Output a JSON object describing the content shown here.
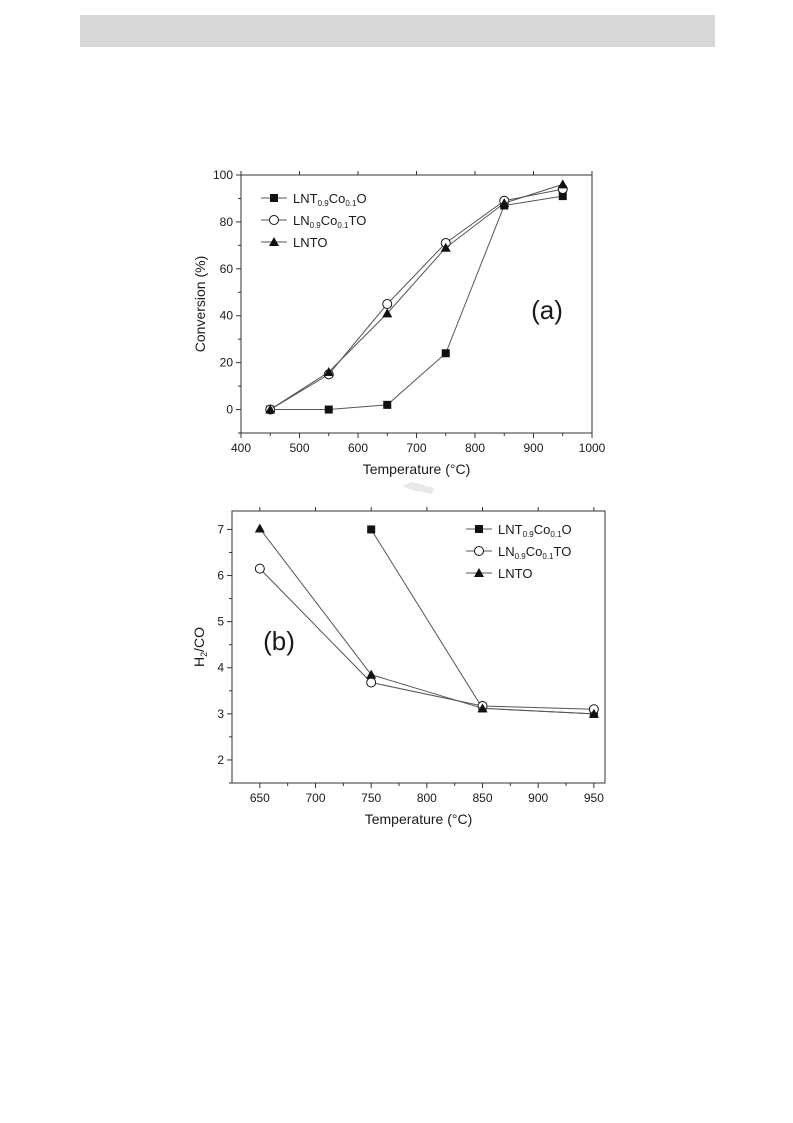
{
  "page": {
    "header_bar_color": "#d7d7d7"
  },
  "chart_data": [
    {
      "type": "line",
      "panel_label": "(a)",
      "xlabel": "Temperature (°C)",
      "ylabel": "Conversion (%)",
      "xlim": [
        400,
        1000
      ],
      "ylim": [
        -10,
        100
      ],
      "xticks": [
        400,
        500,
        600,
        700,
        800,
        900,
        1000
      ],
      "yticks": [
        0,
        20,
        40,
        60,
        80,
        100
      ],
      "grid": false,
      "legend_position": "top-left",
      "series": [
        {
          "name": "LNT0.9Co0.1O",
          "legend": {
            "base": "LNT",
            "sub1": "0.9",
            "mid": "Co",
            "sub2": "0.1",
            "tail": "O"
          },
          "marker": "square",
          "x": [
            450,
            550,
            650,
            750,
            850,
            950
          ],
          "y": [
            0,
            0,
            2,
            24,
            87,
            91
          ]
        },
        {
          "name": "LN0.9Co0.1TO",
          "legend": {
            "base": "LN",
            "sub1": "0.9",
            "mid": "Co",
            "sub2": "0.1",
            "tail": "TO"
          },
          "marker": "circle-open",
          "x": [
            450,
            550,
            650,
            750,
            850,
            950
          ],
          "y": [
            0,
            15,
            45,
            71,
            89,
            94
          ]
        },
        {
          "name": "LNTO",
          "legend": {
            "base": "LNTO",
            "sub1": "",
            "mid": "",
            "sub2": "",
            "tail": ""
          },
          "marker": "triangle",
          "x": [
            450,
            550,
            650,
            750,
            850,
            950
          ],
          "y": [
            0,
            16,
            41,
            69,
            88,
            96
          ]
        }
      ]
    },
    {
      "type": "line",
      "panel_label": "(b)",
      "xlabel": "Temperature (°C)",
      "ylabel": "H2/CO",
      "xlim": [
        625,
        960
      ],
      "ylim": [
        1.5,
        7.4
      ],
      "xticks": [
        650,
        700,
        750,
        800,
        850,
        900,
        950
      ],
      "yticks": [
        2,
        3,
        4,
        5,
        6,
        7
      ],
      "grid": false,
      "legend_position": "top-right",
      "series": [
        {
          "name": "LNT0.9Co0.1O",
          "legend": {
            "base": "LNT",
            "sub1": "0.9",
            "mid": "Co",
            "sub2": "0.1",
            "tail": "O"
          },
          "marker": "square",
          "x": [
            750,
            850,
            950
          ],
          "y": [
            7.0,
            3.12,
            3.0
          ]
        },
        {
          "name": "LN0.9Co0.1TO",
          "legend": {
            "base": "LN",
            "sub1": "0.9",
            "mid": "Co",
            "sub2": "0.1",
            "tail": "TO"
          },
          "marker": "circle-open",
          "x": [
            650,
            750,
            850,
            950
          ],
          "y": [
            6.15,
            3.68,
            3.17,
            3.1
          ]
        },
        {
          "name": "LNTO",
          "legend": {
            "base": "LNTO",
            "sub1": "",
            "mid": "",
            "sub2": "",
            "tail": ""
          },
          "marker": "triangle",
          "x": [
            650,
            750,
            850,
            950
          ],
          "y": [
            7.02,
            3.85,
            3.12,
            3.0
          ]
        }
      ]
    }
  ]
}
